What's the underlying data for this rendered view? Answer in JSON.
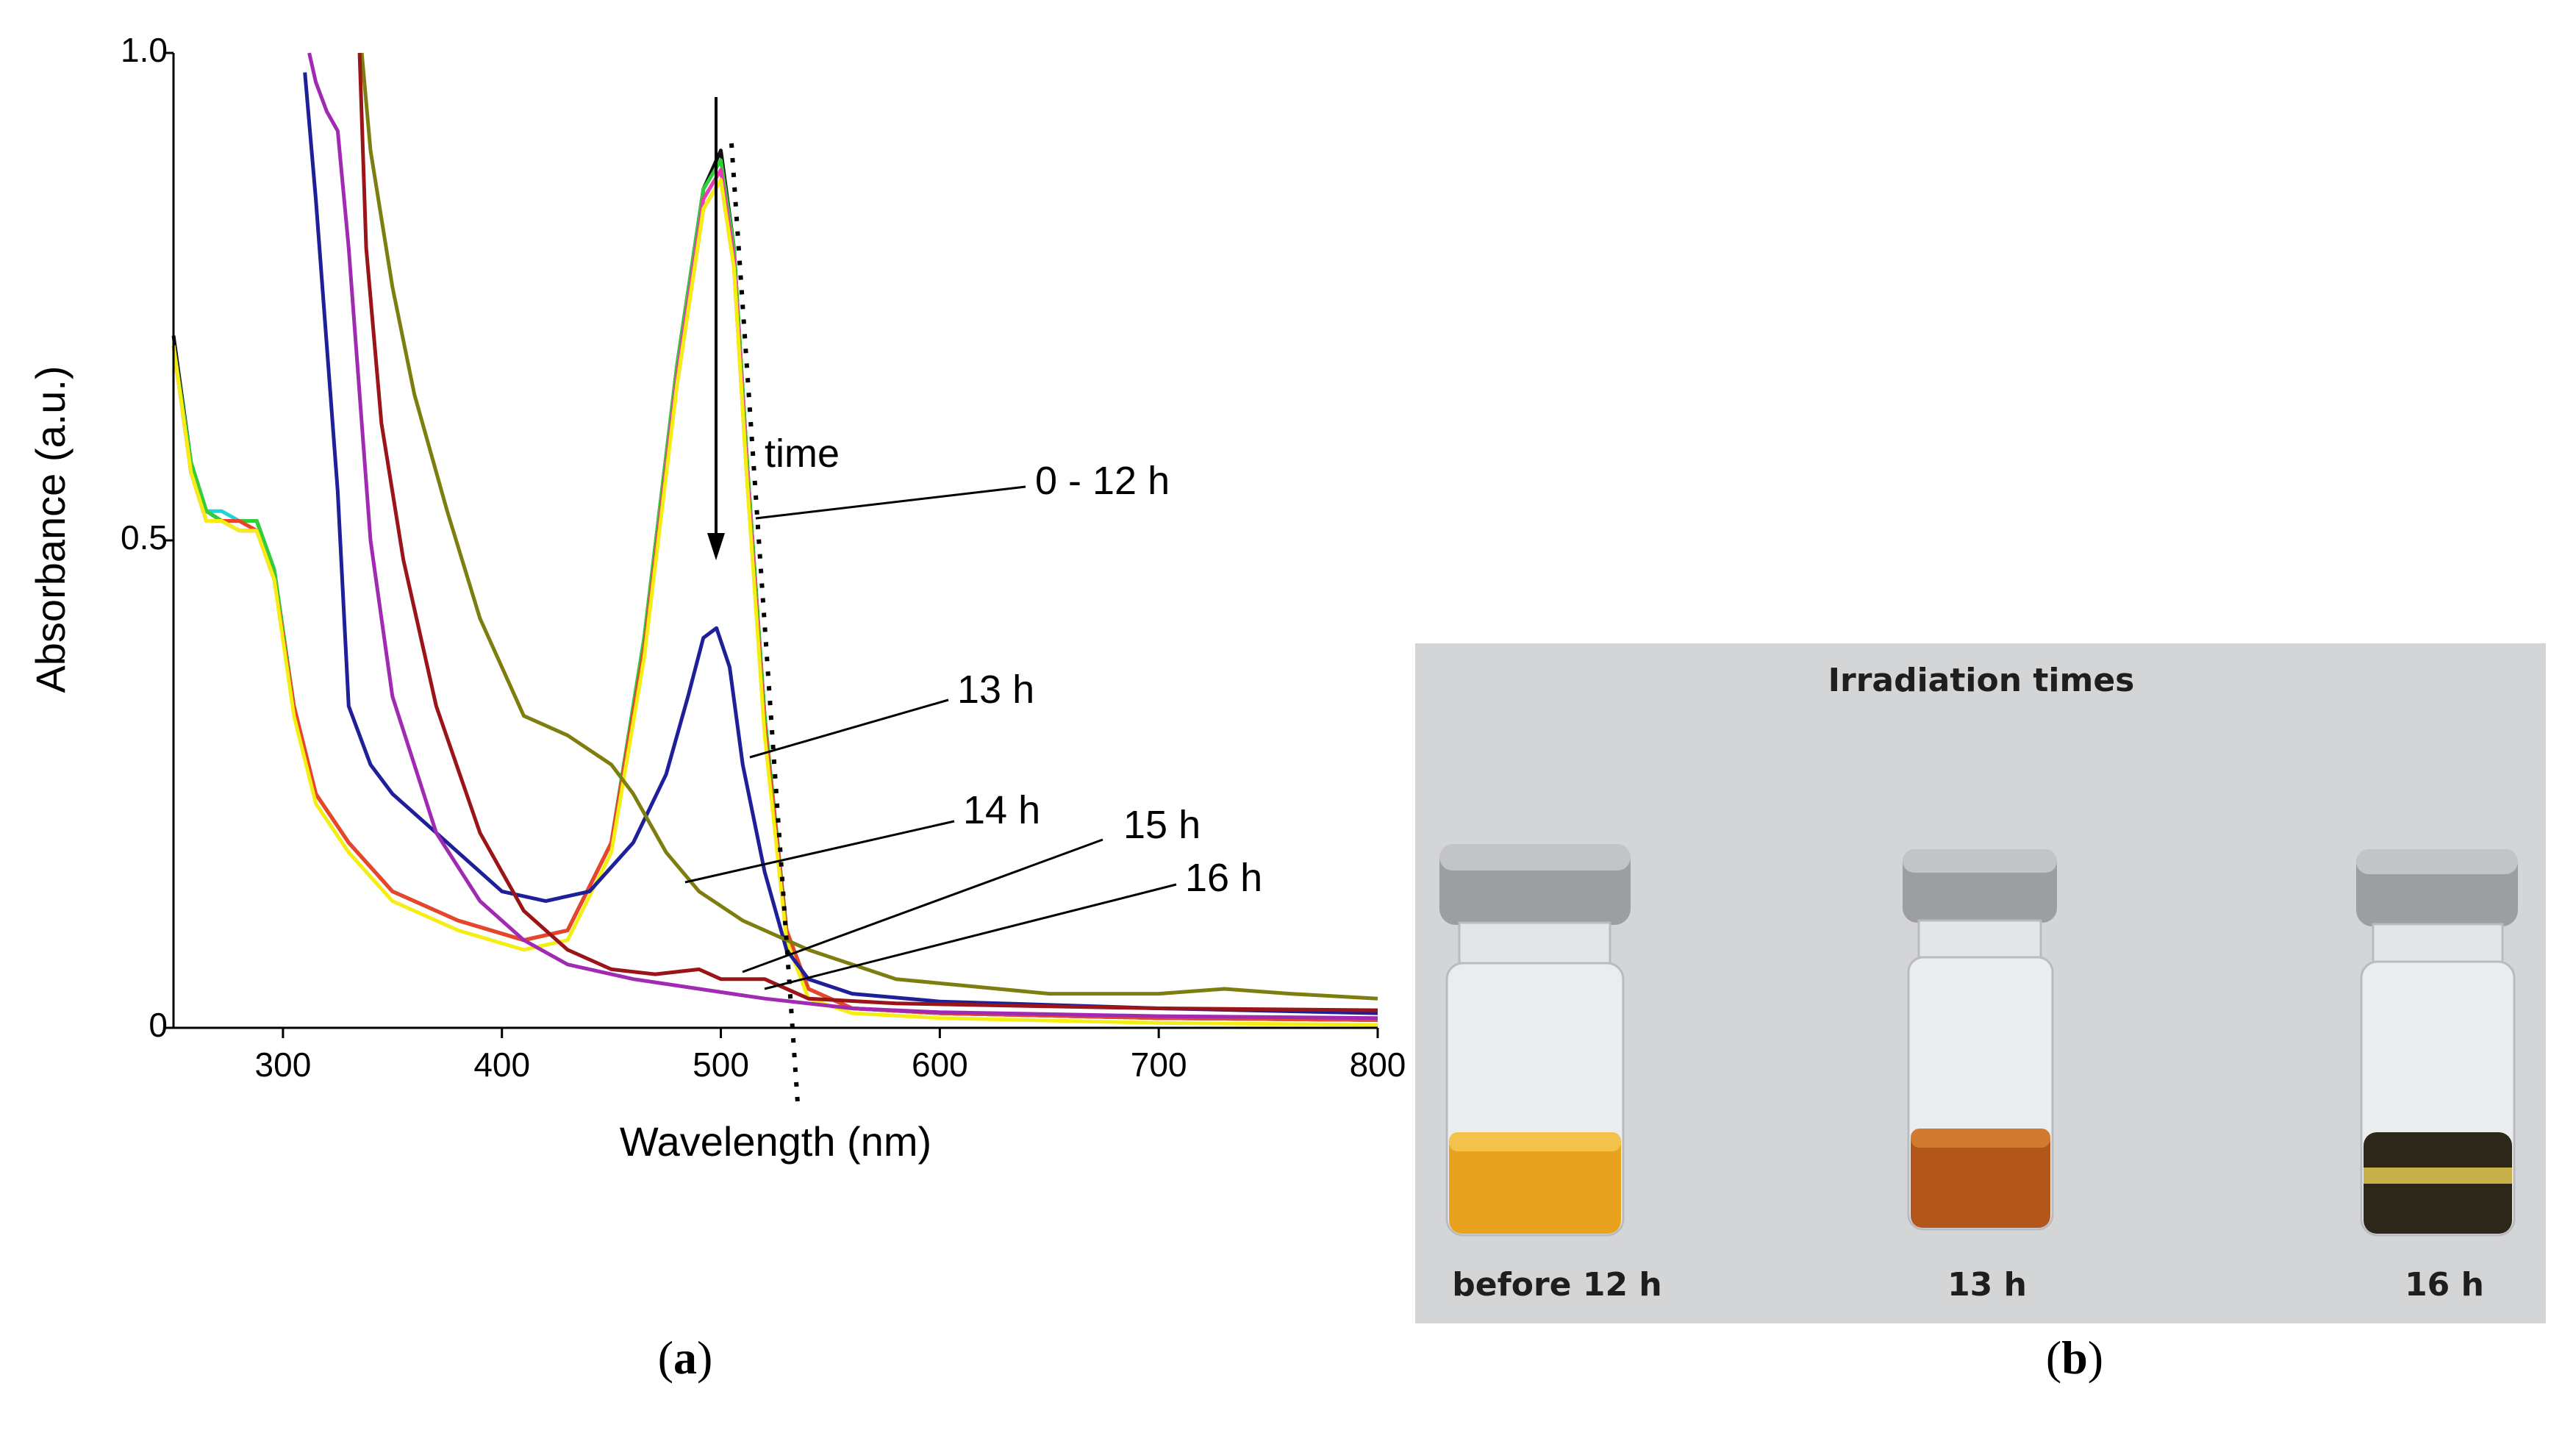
{
  "chart_data": {
    "type": "line",
    "panel_label": "a",
    "xlabel": "Wavelength (nm)",
    "ylabel": "Absorbance (a.u.)",
    "xlim": [
      250,
      800
    ],
    "ylim": [
      0,
      1.0
    ],
    "x_ticks": [
      300,
      400,
      500,
      600,
      700,
      800
    ],
    "y_ticks": [
      {
        "v": 0,
        "label": "0"
      },
      {
        "v": 0.5,
        "label": "0.5"
      },
      {
        "v": 1.0,
        "label": "1.0"
      }
    ],
    "series": [
      {
        "name": "0 h",
        "color": "#111111",
        "x": [
          250,
          258,
          265,
          272,
          280,
          288,
          296,
          305,
          315,
          330,
          350,
          380,
          410,
          430,
          450,
          465,
          480,
          492,
          500,
          506,
          512,
          520,
          530,
          540,
          560,
          600,
          700,
          800
        ],
        "y": [
          0.71,
          0.58,
          0.53,
          0.52,
          0.52,
          0.52,
          0.47,
          0.33,
          0.24,
          0.19,
          0.14,
          0.11,
          0.09,
          0.1,
          0.19,
          0.4,
          0.68,
          0.86,
          0.9,
          0.8,
          0.58,
          0.32,
          0.1,
          0.04,
          0.02,
          0.015,
          0.01,
          0.008
        ]
      },
      {
        "name": "cyan",
        "color": "#22d3d3",
        "x": [
          250,
          258,
          265,
          272,
          280,
          288,
          296,
          305,
          315,
          330,
          350,
          380,
          410,
          430,
          450,
          465,
          480,
          492,
          500,
          506,
          512,
          520,
          530,
          540,
          560,
          600,
          700,
          800
        ],
        "y": [
          0.7,
          0.58,
          0.53,
          0.53,
          0.52,
          0.52,
          0.47,
          0.33,
          0.24,
          0.19,
          0.14,
          0.11,
          0.09,
          0.1,
          0.19,
          0.4,
          0.67,
          0.85,
          0.88,
          0.79,
          0.57,
          0.31,
          0.1,
          0.04,
          0.02,
          0.015,
          0.01,
          0.008
        ]
      },
      {
        "name": "green",
        "color": "#2fcf3a",
        "x": [
          250,
          258,
          265,
          272,
          280,
          288,
          296,
          305,
          315,
          330,
          350,
          380,
          410,
          430,
          450,
          465,
          480,
          492,
          500,
          506,
          512,
          520,
          530,
          540,
          560,
          600,
          700,
          800
        ],
        "y": [
          0.7,
          0.58,
          0.53,
          0.52,
          0.52,
          0.52,
          0.47,
          0.33,
          0.24,
          0.19,
          0.14,
          0.11,
          0.09,
          0.1,
          0.19,
          0.4,
          0.68,
          0.86,
          0.89,
          0.8,
          0.58,
          0.32,
          0.1,
          0.04,
          0.02,
          0.015,
          0.01,
          0.008
        ]
      },
      {
        "name": "magenta",
        "color": "#ee3ab0",
        "x": [
          250,
          258,
          265,
          272,
          280,
          288,
          296,
          305,
          315,
          330,
          350,
          380,
          410,
          430,
          450,
          465,
          480,
          492,
          500,
          506,
          512,
          520,
          530,
          540,
          560,
          600,
          700,
          800
        ],
        "y": [
          0.7,
          0.57,
          0.52,
          0.52,
          0.51,
          0.51,
          0.46,
          0.33,
          0.24,
          0.19,
          0.14,
          0.11,
          0.09,
          0.1,
          0.19,
          0.39,
          0.67,
          0.85,
          0.88,
          0.79,
          0.57,
          0.31,
          0.1,
          0.04,
          0.02,
          0.015,
          0.01,
          0.008
        ]
      },
      {
        "name": "orange-red",
        "color": "#e8452a",
        "x": [
          250,
          258,
          265,
          272,
          280,
          288,
          296,
          305,
          315,
          330,
          350,
          380,
          410,
          430,
          450,
          465,
          480,
          492,
          500,
          506,
          512,
          520,
          530,
          540,
          560,
          600,
          700,
          800
        ],
        "y": [
          0.7,
          0.57,
          0.52,
          0.52,
          0.52,
          0.51,
          0.46,
          0.33,
          0.24,
          0.19,
          0.14,
          0.11,
          0.09,
          0.1,
          0.19,
          0.39,
          0.66,
          0.84,
          0.87,
          0.78,
          0.56,
          0.31,
          0.1,
          0.04,
          0.02,
          0.015,
          0.01,
          0.008
        ]
      },
      {
        "name": "yellow",
        "color": "#f5ee12",
        "x": [
          250,
          258,
          265,
          272,
          280,
          288,
          296,
          305,
          315,
          330,
          350,
          380,
          410,
          430,
          450,
          465,
          480,
          492,
          500,
          506,
          512,
          520,
          530,
          540,
          560,
          600,
          700,
          800
        ],
        "y": [
          0.7,
          0.57,
          0.52,
          0.52,
          0.51,
          0.51,
          0.46,
          0.32,
          0.23,
          0.18,
          0.13,
          0.1,
          0.08,
          0.09,
          0.18,
          0.38,
          0.66,
          0.84,
          0.87,
          0.78,
          0.56,
          0.3,
          0.09,
          0.03,
          0.015,
          0.01,
          0.005,
          0.003
        ]
      },
      {
        "name": "13 h",
        "color": "#1f1f99",
        "x": [
          310,
          315,
          320,
          325,
          330,
          340,
          350,
          370,
          400,
          420,
          440,
          460,
          475,
          485,
          492,
          498,
          504,
          510,
          520,
          530,
          540,
          560,
          600,
          700,
          800
        ],
        "y": [
          0.98,
          0.85,
          0.7,
          0.55,
          0.33,
          0.27,
          0.24,
          0.2,
          0.14,
          0.13,
          0.14,
          0.19,
          0.26,
          0.34,
          0.4,
          0.41,
          0.37,
          0.27,
          0.16,
          0.08,
          0.05,
          0.035,
          0.027,
          0.02,
          0.015
        ]
      },
      {
        "name": "14 h",
        "color": "#7e7e10",
        "x": [
          336,
          340,
          350,
          360,
          375,
          390,
          410,
          430,
          450,
          460,
          475,
          490,
          510,
          540,
          580,
          650,
          700,
          730,
          760,
          800
        ],
        "y": [
          1.0,
          0.9,
          0.76,
          0.65,
          0.53,
          0.42,
          0.32,
          0.3,
          0.27,
          0.24,
          0.18,
          0.14,
          0.11,
          0.08,
          0.05,
          0.035,
          0.035,
          0.04,
          0.035,
          0.03
        ]
      },
      {
        "name": "15 h",
        "color": "#9a1418",
        "x": [
          335,
          338,
          345,
          355,
          370,
          390,
          410,
          430,
          450,
          470,
          490,
          500,
          510,
          520,
          540,
          580,
          650,
          700,
          800
        ],
        "y": [
          1.0,
          0.8,
          0.62,
          0.48,
          0.33,
          0.2,
          0.12,
          0.08,
          0.06,
          0.055,
          0.06,
          0.05,
          0.05,
          0.05,
          0.03,
          0.025,
          0.022,
          0.02,
          0.018
        ]
      },
      {
        "name": "16 h",
        "color": "#a12ab3",
        "x": [
          312,
          315,
          320,
          325,
          330,
          340,
          350,
          370,
          390,
          410,
          430,
          460,
          490,
          520,
          560,
          600,
          700,
          800
        ],
        "y": [
          1.0,
          0.97,
          0.94,
          0.92,
          0.8,
          0.5,
          0.34,
          0.2,
          0.13,
          0.09,
          0.065,
          0.05,
          0.04,
          0.03,
          0.02,
          0.016,
          0.012,
          0.01
        ]
      }
    ],
    "annotations": {
      "time": "time",
      "t0_12": "0 - 12 h",
      "t13": "13 h",
      "t14": "14 h",
      "t15": "15 h",
      "t16": "16 h"
    }
  },
  "photo": {
    "panel_label": "b",
    "title": "Irradiation times",
    "background": "#d4d5d7",
    "vials": [
      {
        "label": "before 12 h",
        "liquid": "#e9a21e",
        "liquid_top": "#f2c24a"
      },
      {
        "label": "13 h",
        "liquid": "#b3561c",
        "liquid_top": "#d27a30"
      },
      {
        "label": "16 h",
        "liquid": "#2c2718",
        "liquid_top": "#c8b04a"
      }
    ]
  }
}
